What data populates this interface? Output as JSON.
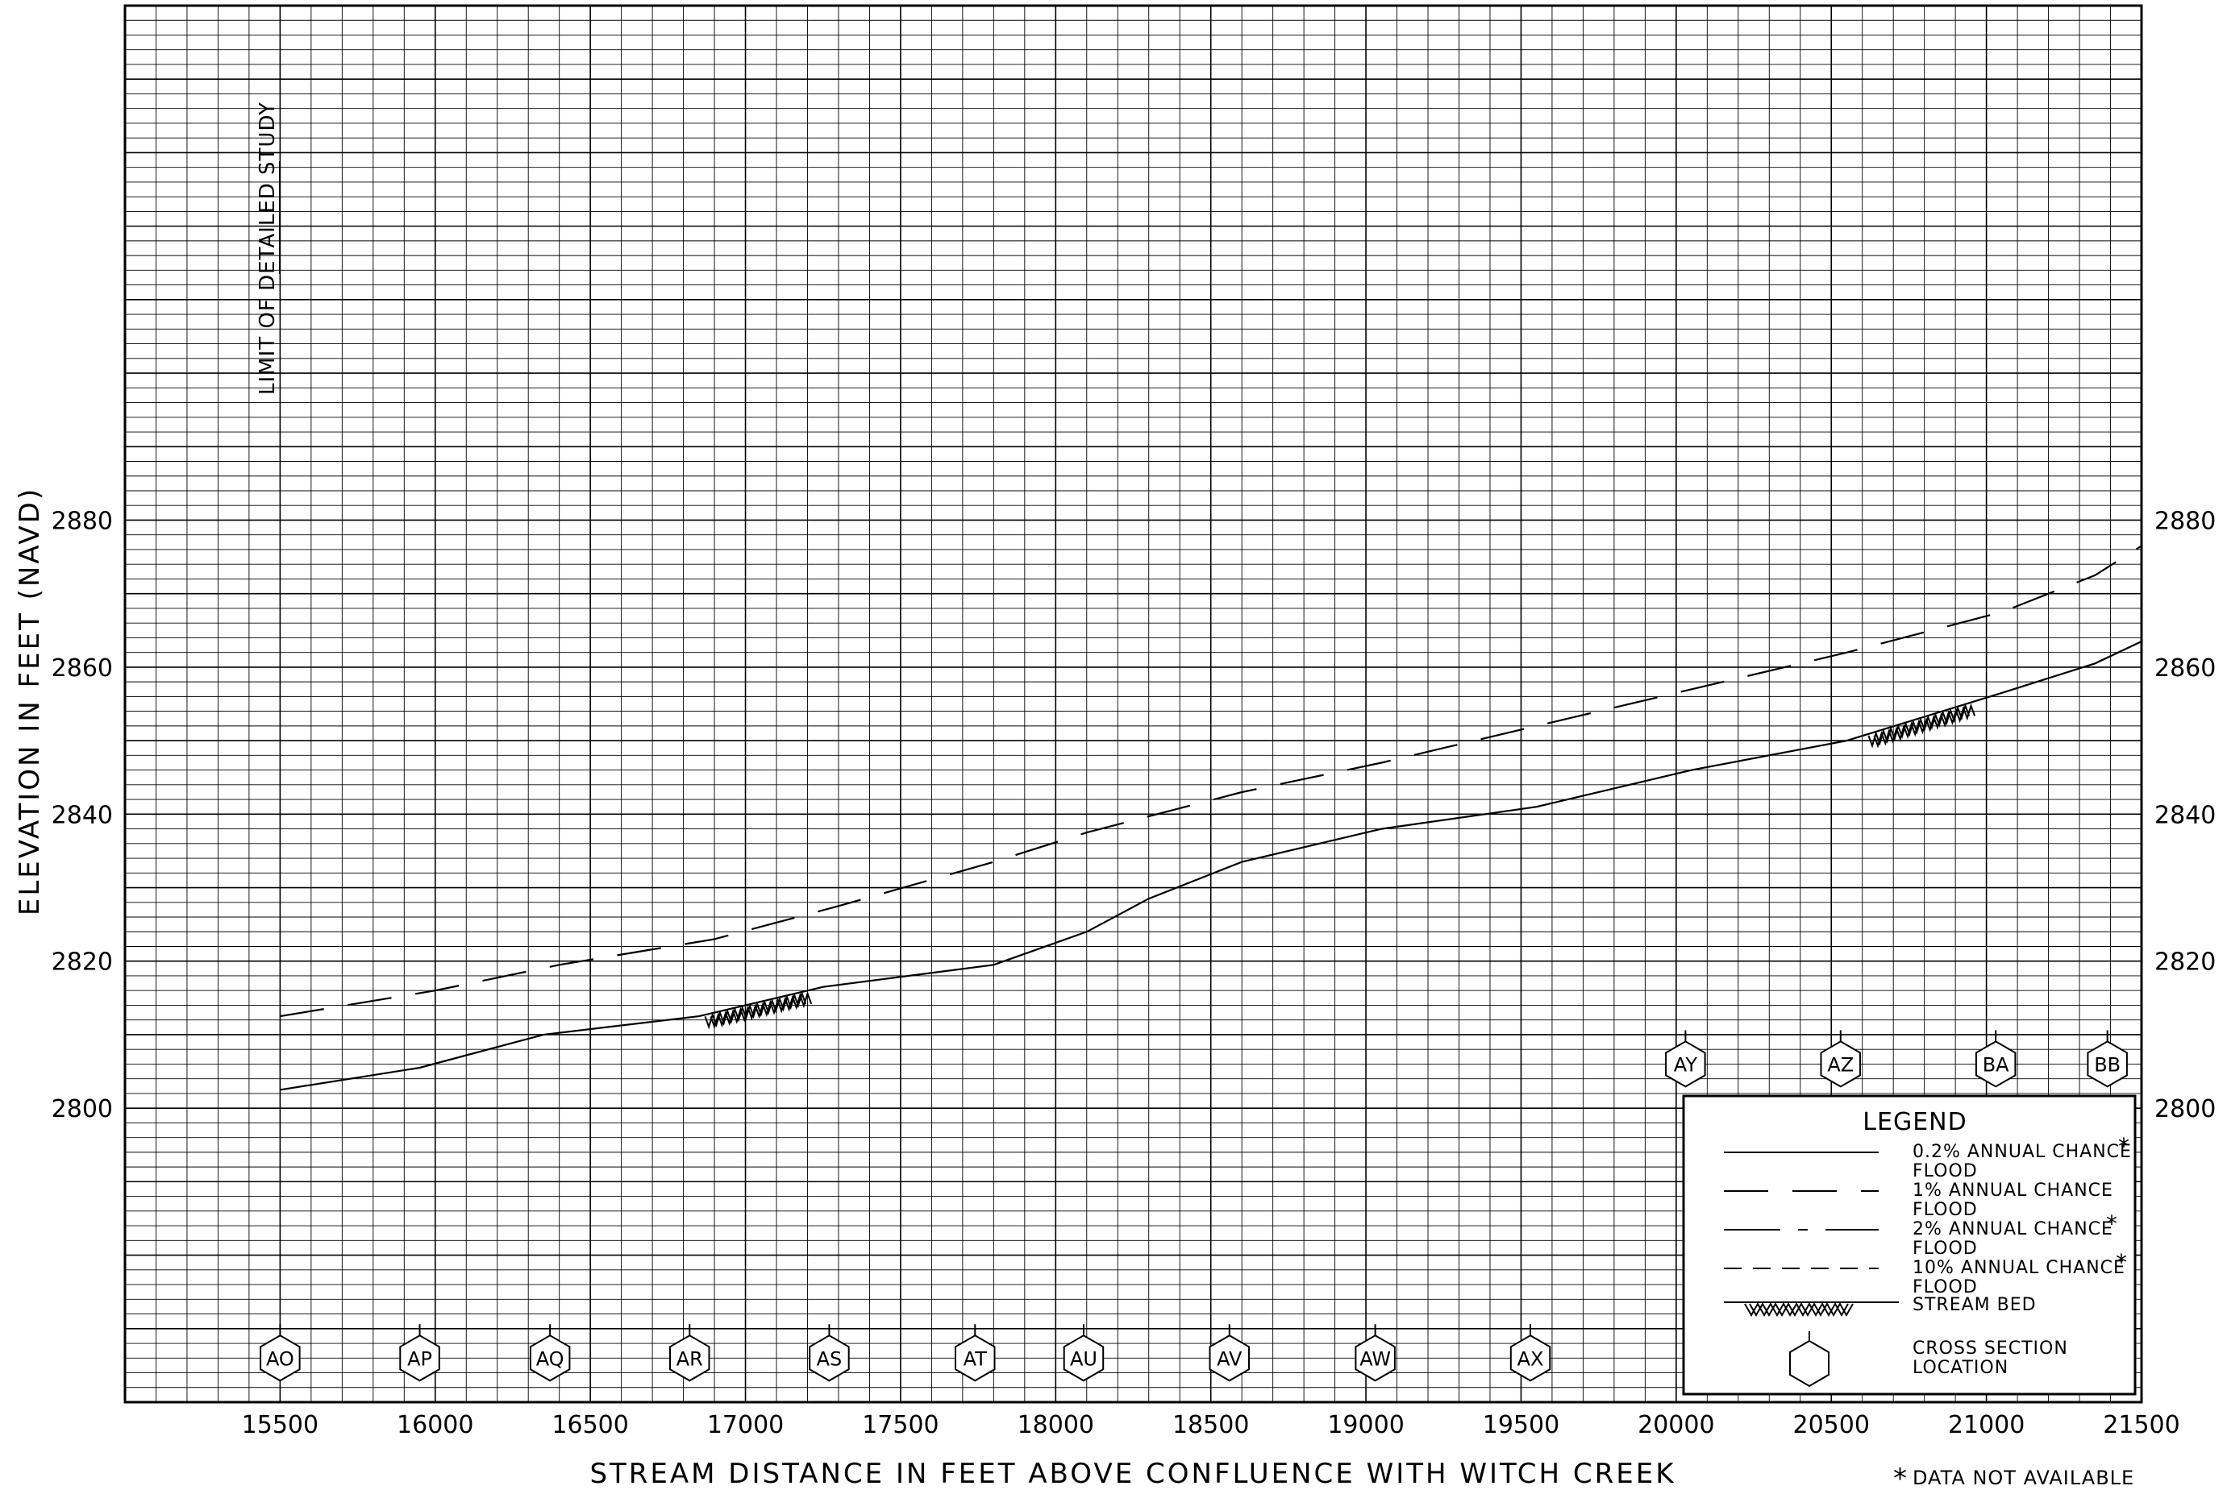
{
  "chart_data": {
    "type": "line",
    "xlabel": "STREAM DISTANCE IN FEET ABOVE CONFLUENCE WITH WITCH CREEK",
    "ylabel": "ELEVATION IN FEET (NAVD)",
    "xlim": [
      15000,
      21500
    ],
    "ylim": [
      2760,
      2950
    ],
    "grid": true,
    "x_ticks": [
      "15500",
      "16000",
      "16500",
      "17000",
      "17500",
      "18000",
      "18500",
      "19000",
      "19500",
      "20000",
      "20500",
      "21000",
      "21500"
    ],
    "y_ticks_left": [
      "2800",
      "2820",
      "2840",
      "2860",
      "2880"
    ],
    "y_ticks_right": [
      "2800",
      "2820",
      "2840",
      "2860",
      "2880"
    ],
    "annotation": "LIMIT OF DETAILED STUDY",
    "footnote": "DATA NOT AVAILABLE",
    "footnote_mark": "*",
    "series": [
      {
        "key": "flood_1pct",
        "style": "long-dash",
        "x": [
          15500,
          16000,
          16400,
          16900,
          17300,
          17800,
          18100,
          18600,
          19050,
          19550,
          20050,
          20550,
          21050,
          21350,
          21500
        ],
        "y": [
          2812.5,
          2816,
          2819.5,
          2823,
          2827.5,
          2833.5,
          2837.5,
          2843,
          2847,
          2852,
          2857,
          2862,
          2867.5,
          2872.5,
          2876.5
        ]
      },
      {
        "key": "stream_bed",
        "style": "solid",
        "x": [
          15500,
          15950,
          16350,
          16850,
          17250,
          17800,
          18100,
          18300,
          18600,
          19050,
          19550,
          20050,
          20550,
          21050,
          21350,
          21500
        ],
        "y": [
          2802.5,
          2805.5,
          2810,
          2812.5,
          2816.5,
          2819.5,
          2824,
          2828.5,
          2833.5,
          2838,
          2841,
          2846,
          2850,
          2856.5,
          2860.5,
          2863.5
        ]
      }
    ],
    "stream_bed_hatches": [
      {
        "x_start": 16870,
        "x_end": 17200
      },
      {
        "x_start": 20620,
        "x_end": 20950
      }
    ],
    "cross_sections": [
      {
        "label": "AO",
        "x": 15500,
        "y": 2766
      },
      {
        "label": "AP",
        "x": 15950,
        "y": 2766
      },
      {
        "label": "AQ",
        "x": 16370,
        "y": 2766
      },
      {
        "label": "AR",
        "x": 16820,
        "y": 2766
      },
      {
        "label": "AS",
        "x": 17270,
        "y": 2766
      },
      {
        "label": "AT",
        "x": 17740,
        "y": 2766
      },
      {
        "label": "AU",
        "x": 18090,
        "y": 2766
      },
      {
        "label": "AV",
        "x": 18560,
        "y": 2766
      },
      {
        "label": "AW",
        "x": 19030,
        "y": 2766
      },
      {
        "label": "AX",
        "x": 19530,
        "y": 2766
      },
      {
        "label": "AY",
        "x": 20030,
        "y": 2806
      },
      {
        "label": "AZ",
        "x": 20530,
        "y": 2806
      },
      {
        "label": "BA",
        "x": 21030,
        "y": 2806
      },
      {
        "label": "BB",
        "x": 21390,
        "y": 2806
      }
    ],
    "legend": {
      "title": "LEGEND",
      "position": "bottom-right",
      "entries": [
        {
          "label1": "0.2% ANNUAL CHANCE",
          "label2": "FLOOD",
          "style": "solid",
          "asterisk": "*"
        },
        {
          "label1": "1% ANNUAL CHANCE",
          "label2": "FLOOD",
          "style": "long-dash",
          "asterisk": ""
        },
        {
          "label1": "2% ANNUAL CHANCE",
          "label2": "FLOOD",
          "style": "dash-gap",
          "asterisk": "*"
        },
        {
          "label1": "10% ANNUAL CHANCE",
          "label2": "FLOOD",
          "style": "short-dash",
          "asterisk": "*"
        },
        {
          "label1": "STREAM BED",
          "label2": "",
          "style": "hatch",
          "asterisk": ""
        },
        {
          "label1": "CROSS SECTION",
          "label2": "LOCATION",
          "style": "hexagon",
          "asterisk": ""
        }
      ]
    }
  }
}
